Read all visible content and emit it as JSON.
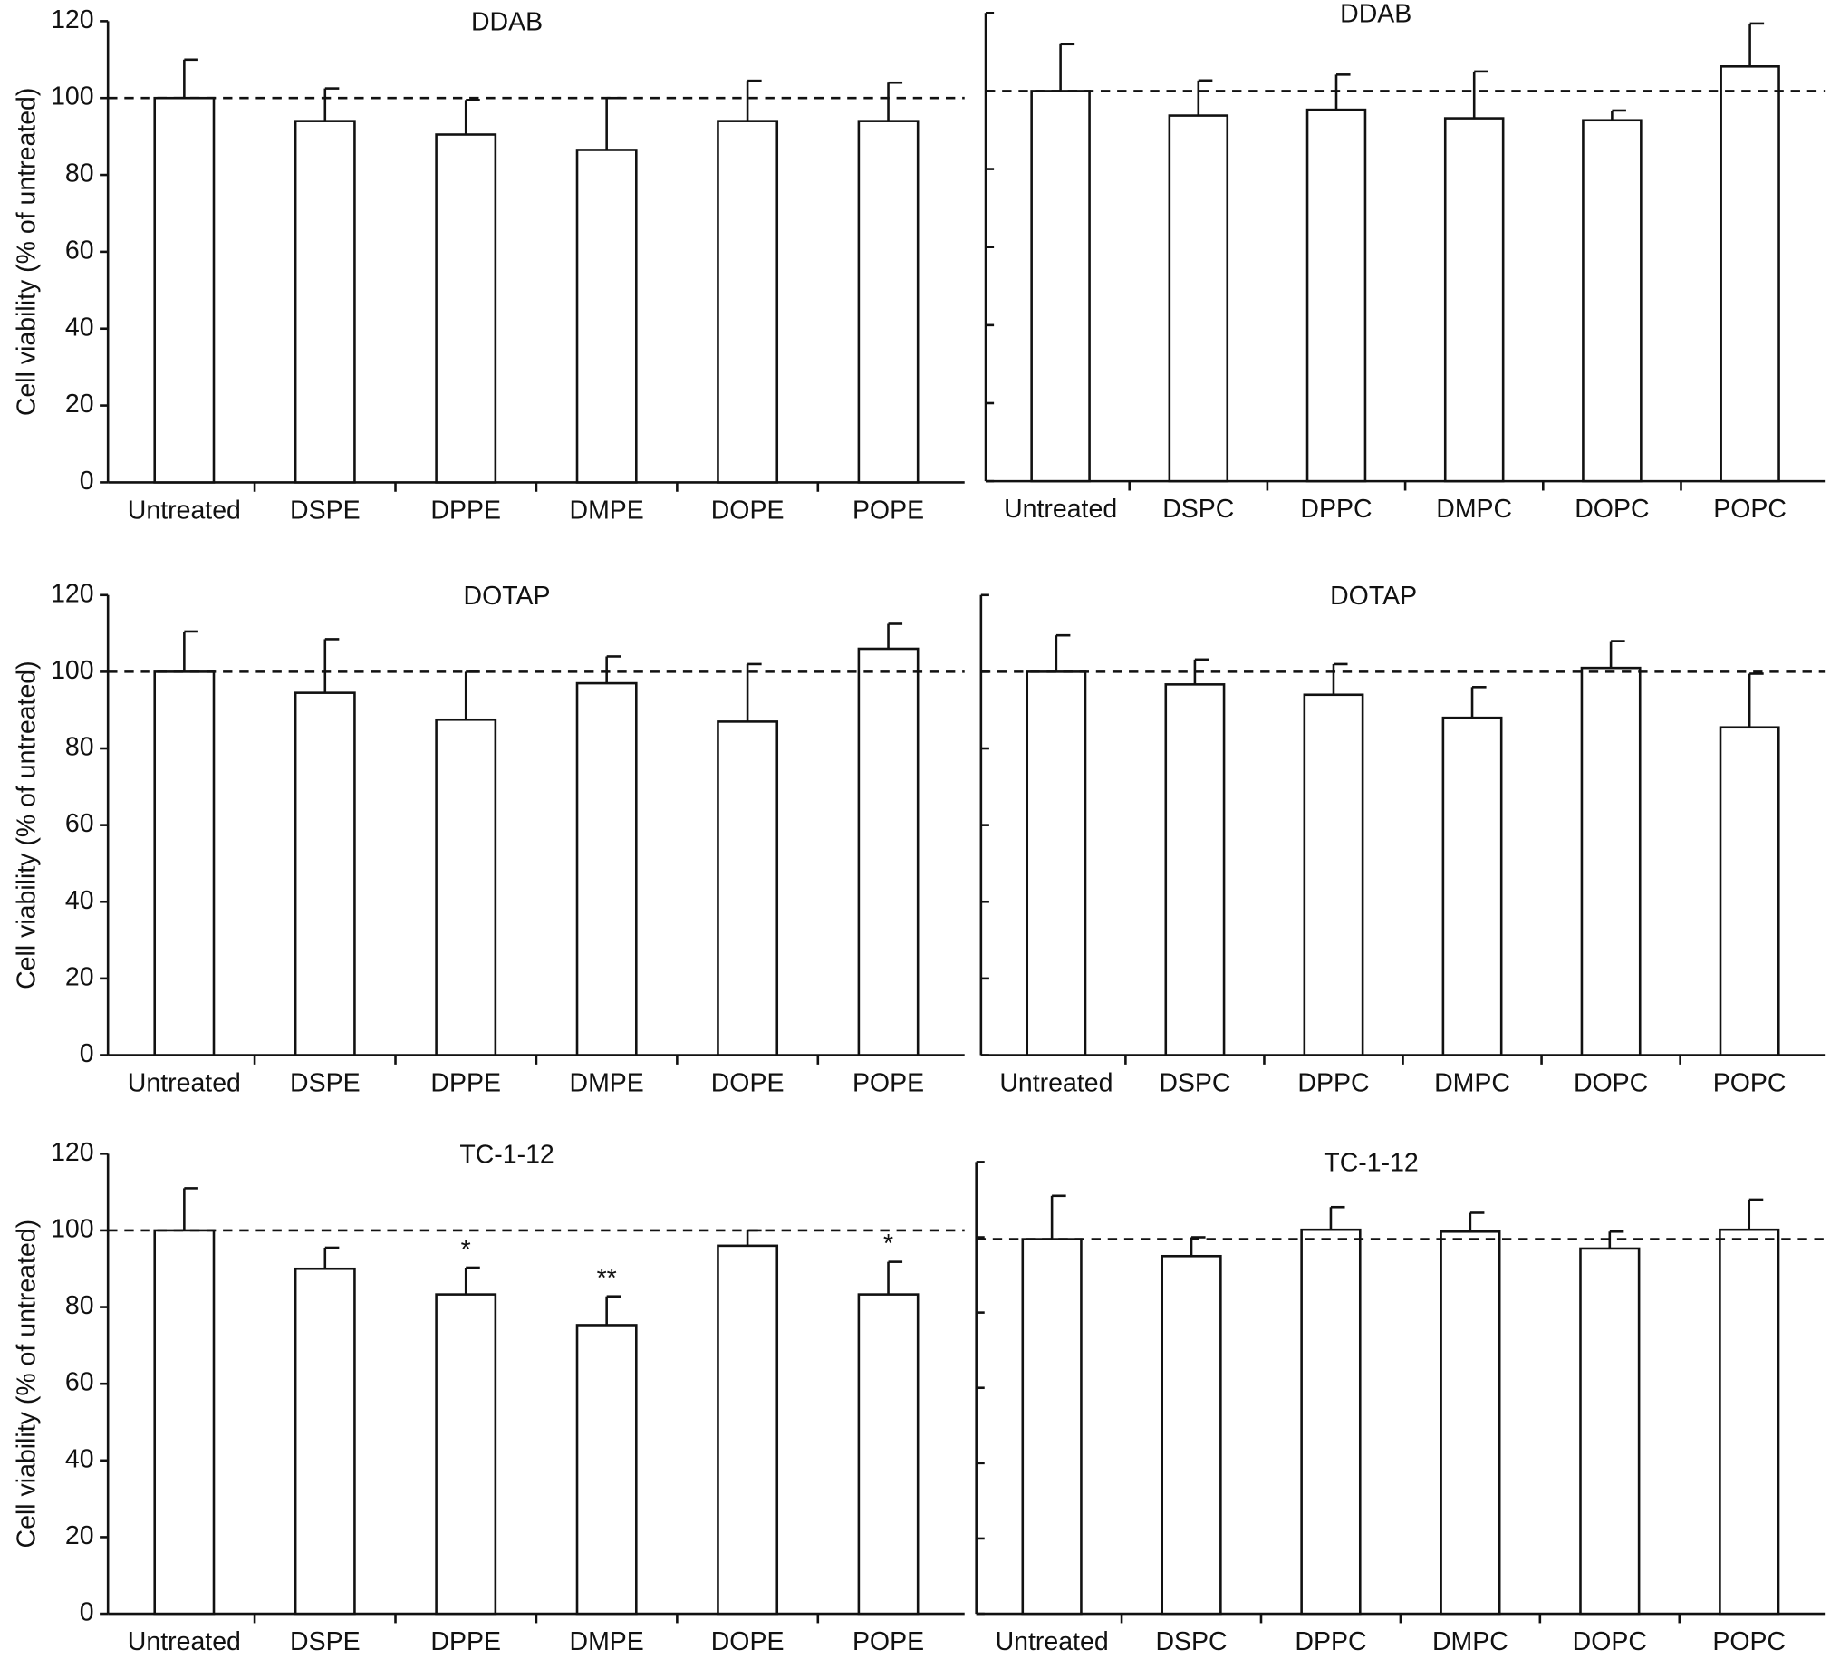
{
  "chart_data": [
    {
      "type": "bar",
      "title": "DDAB",
      "y_label": "Cell viability (% of untreated)",
      "show_ytick_labels": true,
      "categories": [
        "Untreated",
        "DSPE",
        "DPPE",
        "DMPE",
        "DOPE",
        "POPE"
      ],
      "values": [
        100,
        94,
        90.5,
        86.5,
        94,
        94
      ],
      "errors": [
        10,
        8.5,
        9,
        13.5,
        10.5,
        10
      ],
      "color": "#ffffff",
      "ylim": [
        0,
        120
      ],
      "yticks": [
        0,
        20,
        40,
        60,
        80,
        100,
        120
      ],
      "reference_line": 100
    },
    {
      "type": "bar",
      "title": "DDAB",
      "show_ytick_labels": false,
      "categories": [
        "Untreated",
        "DSPC",
        "DPPC",
        "DMPC",
        "DOPC",
        "POPC"
      ],
      "values": [
        100,
        93.7,
        95.2,
        93,
        92.5,
        106.3
      ],
      "errors": [
        12,
        9,
        9,
        12,
        2.5,
        11
      ],
      "color": "#ffffff",
      "ylim": [
        0,
        120
      ],
      "yticks": [
        0,
        20,
        40,
        60,
        80,
        100,
        120
      ],
      "reference_line": 100
    },
    {
      "type": "bar",
      "title": "DOTAP",
      "y_label": "Cell viability (% of untreated)",
      "show_ytick_labels": true,
      "categories": [
        "Untreated",
        "DSPE",
        "DPPE",
        "DMPE",
        "DOPE",
        "POPE"
      ],
      "values": [
        100,
        94.5,
        87.5,
        97,
        87,
        106
      ],
      "errors": [
        10.5,
        14,
        12.5,
        7,
        15,
        6.5
      ],
      "color": "#ffffff",
      "ylim": [
        0,
        120
      ],
      "yticks": [
        0,
        20,
        40,
        60,
        80,
        100,
        120
      ],
      "reference_line": 100
    },
    {
      "type": "bar",
      "title": "DOTAP",
      "show_ytick_labels": false,
      "categories": [
        "Untreated",
        "DSPC",
        "DPPC",
        "DMPC",
        "DOPC",
        "POPC"
      ],
      "values": [
        100,
        96.7,
        94,
        88,
        101,
        85.5
      ],
      "errors": [
        9.5,
        6.5,
        8,
        8,
        7,
        14
      ],
      "color": "#ffffff",
      "ylim": [
        0,
        120
      ],
      "yticks": [
        0,
        20,
        40,
        60,
        80,
        100,
        120
      ],
      "reference_line": 100
    },
    {
      "type": "bar",
      "title": "TC-1-12",
      "y_label": "Cell viability (% of untreated)",
      "show_ytick_labels": true,
      "categories": [
        "Untreated",
        "DSPE",
        "DPPE",
        "DMPE",
        "DOPE",
        "POPE"
      ],
      "values": [
        100,
        90,
        83.3,
        75.3,
        96,
        83.3
      ],
      "errors": [
        11,
        5.5,
        7,
        7.5,
        4,
        8.5
      ],
      "annotations": [
        null,
        null,
        "*",
        "**",
        null,
        "*"
      ],
      "color": "#ffffff",
      "ylim": [
        0,
        120
      ],
      "yticks": [
        0,
        20,
        40,
        60,
        80,
        100,
        120
      ],
      "reference_line": 100
    },
    {
      "type": "bar",
      "title": "TC-1-12",
      "show_ytick_labels": false,
      "categories": [
        "Untreated",
        "DSPC",
        "DPPC",
        "DMPC",
        "DOPC",
        "POPC"
      ],
      "values": [
        99.5,
        95,
        102,
        101.5,
        97,
        102
      ],
      "errors": [
        11.5,
        5,
        6,
        5,
        4.5,
        8
      ],
      "color": "#ffffff",
      "ylim": [
        0,
        120
      ],
      "yticks": [
        0,
        20,
        40,
        60,
        80,
        100,
        120
      ],
      "reference_line": 99.5
    }
  ]
}
